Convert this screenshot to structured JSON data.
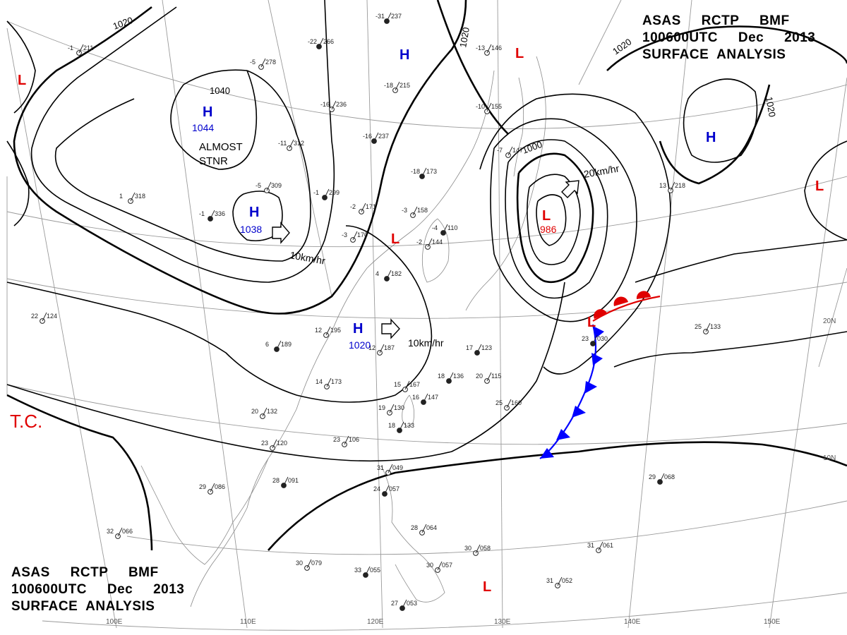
{
  "header": {
    "line1": "ASAS     RCTP     BMF",
    "line2": "100600UTC     Dec     2013",
    "line3": "SURFACE  ANALYSIS"
  },
  "systems": [
    {
      "type": "H",
      "value": "1044"
    },
    {
      "type": "H",
      "value": "1038"
    },
    {
      "type": "H",
      "value": "1020"
    },
    {
      "type": "H",
      "value": ""
    },
    {
      "type": "H",
      "value": ""
    },
    {
      "type": "L",
      "value": "986"
    },
    {
      "type": "L",
      "value": ""
    },
    {
      "type": "L",
      "value": ""
    },
    {
      "type": "L",
      "value": ""
    },
    {
      "type": "L",
      "value": ""
    },
    {
      "type": "L",
      "value": ""
    },
    {
      "type": "L",
      "value": ""
    }
  ],
  "isobar_labels": [
    "1020",
    "1040",
    "1020",
    "1020",
    "1020",
    "1000"
  ],
  "movements": [
    "10km/hr",
    "10km/hr",
    "20km/hr"
  ],
  "annotations": {
    "almost": "ALMOST",
    "stnr": "STNR",
    "tc": "T.C."
  },
  "lon_ticks": [
    "100E",
    "110E",
    "120E",
    "130E",
    "140E",
    "150E"
  ],
  "lat_ticks": [
    "20N",
    "10N"
  ],
  "stations": [
    {
      "t": "-31",
      "p": "237"
    },
    {
      "t": "-1",
      "p": "211"
    },
    {
      "t": "-5",
      "p": "278"
    },
    {
      "t": "-22",
      "p": "266"
    },
    {
      "t": "-18",
      "p": "215"
    },
    {
      "t": "-16",
      "p": "236"
    },
    {
      "t": "-16",
      "p": "237"
    },
    {
      "t": "-13",
      "p": "146"
    },
    {
      "t": "-10",
      "p": "155"
    },
    {
      "t": "-18",
      "p": "173"
    },
    {
      "t": "-11",
      "p": "312"
    },
    {
      "t": "-5",
      "p": "309"
    },
    {
      "t": "-1",
      "p": "299"
    },
    {
      "t": "-3",
      "p": "158"
    },
    {
      "t": "-2",
      "p": "171"
    },
    {
      "t": "-1",
      "p": "336"
    },
    {
      "t": "1",
      "p": "318"
    },
    {
      "t": "-3",
      "p": "170"
    },
    {
      "t": "4",
      "p": "182"
    },
    {
      "t": "12",
      "p": "195"
    },
    {
      "t": "12",
      "p": "187"
    },
    {
      "t": "6",
      "p": "189"
    },
    {
      "t": "14",
      "p": "173"
    },
    {
      "t": "15",
      "p": "167"
    },
    {
      "t": "16",
      "p": "147"
    },
    {
      "t": "19",
      "p": "130"
    },
    {
      "t": "20",
      "p": "132"
    },
    {
      "t": "18",
      "p": "133"
    },
    {
      "t": "23",
      "p": "120"
    },
    {
      "t": "23",
      "p": "106"
    },
    {
      "t": "28",
      "p": "091"
    },
    {
      "t": "29",
      "p": "086"
    },
    {
      "t": "31",
      "p": "049"
    },
    {
      "t": "24",
      "p": "057"
    },
    {
      "t": "28",
      "p": "064"
    },
    {
      "t": "30",
      "p": "058"
    },
    {
      "t": "33",
      "p": "055"
    },
    {
      "t": "30",
      "p": "079"
    },
    {
      "t": "32",
      "p": "066"
    },
    {
      "t": "27",
      "p": "053"
    },
    {
      "t": "31",
      "p": "061"
    },
    {
      "t": "31",
      "p": "052"
    },
    {
      "t": "29",
      "p": "068"
    },
    {
      "t": "30",
      "p": "057"
    },
    {
      "t": "25",
      "p": "133"
    },
    {
      "t": "23",
      "p": "030"
    },
    {
      "t": "13",
      "p": "218"
    },
    {
      "t": "22",
      "p": "124"
    },
    {
      "t": "18",
      "p": "136"
    },
    {
      "t": "20",
      "p": "115"
    },
    {
      "t": "25",
      "p": "160"
    },
    {
      "t": "17",
      "p": "123"
    },
    {
      "t": "-7",
      "p": "147"
    },
    {
      "t": "-2",
      "p": "144"
    },
    {
      "t": "-4",
      "p": "110"
    }
  ],
  "colors": {
    "high": "#0000cc",
    "low": "#e00000",
    "isobar": "#000000",
    "grid": "#9a9a9a",
    "cold_front": "#0000ff",
    "warm_front": "#e00000"
  }
}
